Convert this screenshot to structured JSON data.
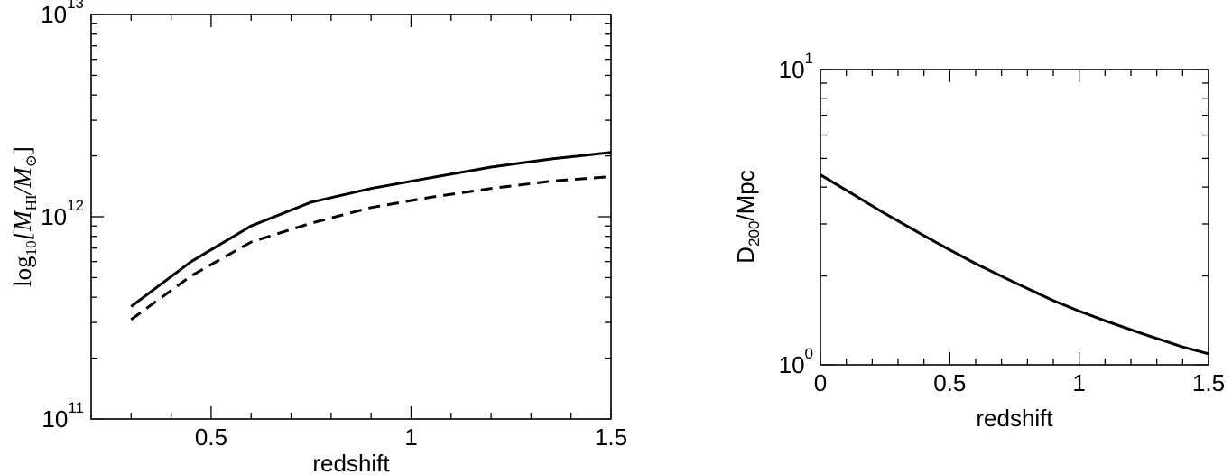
{
  "chart_data": [
    {
      "type": "line",
      "xlabel": "redshift",
      "ylabel": {
        "prefix": "log",
        "sub1": "10",
        "middle": "[M",
        "sub2": "HI",
        "slash": "/M",
        "sub3": "⊙",
        "suffix": "]"
      },
      "xlim": [
        0.2,
        1.5
      ],
      "ylim": [
        100000000000.0,
        10000000000000.0
      ],
      "yscale": "log",
      "x_ticks": [
        {
          "value": 0.5,
          "label": "0.5"
        },
        {
          "value": 1.0,
          "label": "1"
        },
        {
          "value": 1.5,
          "label": "1.5"
        }
      ],
      "y_ticks": [
        {
          "value": 100000000000.0,
          "base": "10",
          "exp": "11"
        },
        {
          "value": 1000000000000.0,
          "base": "10",
          "exp": "12"
        },
        {
          "value": 10000000000000.0,
          "base": "10",
          "exp": "13"
        }
      ],
      "series": [
        {
          "style": "solid",
          "x": [
            0.3,
            0.45,
            0.6,
            0.75,
            0.9,
            1.05,
            1.2,
            1.35,
            1.5
          ],
          "y": [
            360000000000.0,
            600000000000.0,
            900000000000.0,
            1180000000000.0,
            1380000000000.0,
            1560000000000.0,
            1760000000000.0,
            1930000000000.0,
            2080000000000.0
          ]
        },
        {
          "style": "dashed",
          "x": [
            0.3,
            0.45,
            0.6,
            0.75,
            0.9,
            1.05,
            1.2,
            1.35,
            1.5
          ],
          "y": [
            310000000000.0,
            510000000000.0,
            750000000000.0,
            930000000000.0,
            1110000000000.0,
            1250000000000.0,
            1380000000000.0,
            1500000000000.0,
            1580000000000.0
          ]
        }
      ]
    },
    {
      "type": "line",
      "xlabel": "redshift",
      "ylabel": {
        "prefix": "D",
        "sub": "200",
        "suffix": "/Mpc"
      },
      "xlim": [
        0,
        1.5
      ],
      "ylim": [
        1,
        10
      ],
      "yscale": "log",
      "x_ticks": [
        {
          "value": 0,
          "label": "0"
        },
        {
          "value": 0.5,
          "label": "0.5"
        },
        {
          "value": 1.0,
          "label": "1"
        },
        {
          "value": 1.5,
          "label": "1.5"
        }
      ],
      "y_ticks": [
        {
          "value": 1,
          "base": "10",
          "exp": "0"
        },
        {
          "value": 10,
          "base": "10",
          "exp": "1"
        }
      ],
      "series": [
        {
          "style": "solid",
          "x": [
            0,
            0.1,
            0.25,
            0.4,
            0.5,
            0.6,
            0.75,
            0.9,
            1.0,
            1.1,
            1.25,
            1.4,
            1.5
          ],
          "y": [
            4.4,
            3.9,
            3.25,
            2.74,
            2.45,
            2.2,
            1.9,
            1.65,
            1.52,
            1.41,
            1.27,
            1.15,
            1.09
          ]
        }
      ]
    }
  ]
}
